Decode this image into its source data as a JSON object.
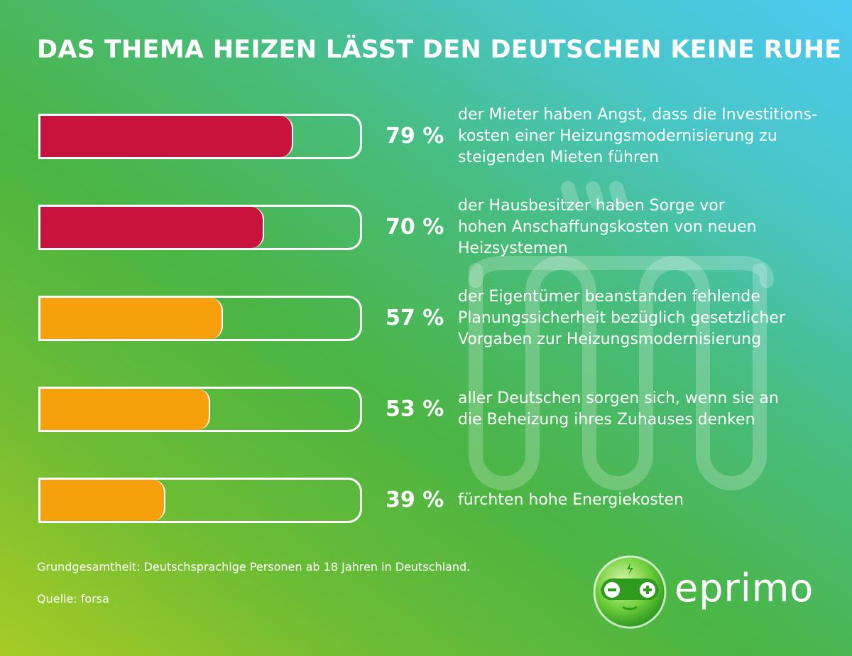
{
  "chart_data": {
    "type": "bar",
    "orientation": "horizontal",
    "title": "DAS THEMA HEIZEN LÄSST DEN DEUTSCHEN KEINE RUHE",
    "xlim": [
      0,
      100
    ],
    "items": [
      {
        "value": 79,
        "label": "79 %",
        "lines": [
          "der Mieter haben Angst, dass die Investitions-",
          "kosten einer Heizungsmodernisierung zu",
          "steigenden Mieten führen"
        ],
        "color": "#c8133d"
      },
      {
        "value": 70,
        "label": "70 %",
        "lines": [
          "der Hausbesitzer haben Sorge vor",
          "hohen Anschaffungskosten von neuen",
          "Heizsystemen"
        ],
        "color": "#c8133d"
      },
      {
        "value": 57,
        "label": "57 %",
        "lines": [
          "der Eigentümer beanstanden fehlende",
          "Planungssicherheit bezüglich gesetzlicher",
          "Vorgaben zur Heizungsmodernisierung"
        ],
        "color": "#f6a00c"
      },
      {
        "value": 53,
        "label": "53 %",
        "lines": [
          "aller Deutschen sorgen sich, wenn sie an",
          "die Beheizung ihres Zuhauses denken"
        ],
        "color": "#f6a00c"
      },
      {
        "value": 39,
        "label": "39 %",
        "lines": [
          "fürchten hohe Energiekosten"
        ],
        "color": "#f6a00c"
      }
    ]
  },
  "footer": {
    "base": "Grundgesamtheit: Deutschsprachige Personen ab 18 Jahren in Deutschland.",
    "source": "Quelle: forsa"
  },
  "logo": {
    "text": "eprimo"
  },
  "watermark_icon": "radiator-icon"
}
